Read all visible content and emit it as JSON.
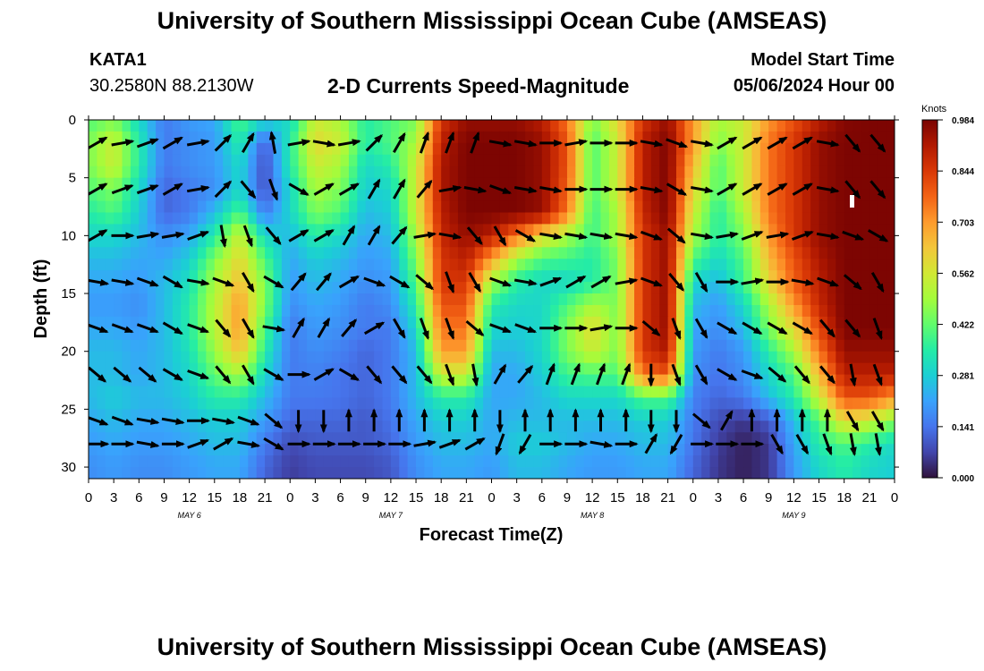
{
  "header": {
    "title": "University of Southern Mississippi Ocean Cube (AMSEAS)",
    "station_id": "KATA1",
    "station_coords": "30.2580N  88.2130W",
    "subtitle": "2-D Currents Speed-Magnitude",
    "model_label": "Model Start Time",
    "model_time": "05/06/2024 Hour 00"
  },
  "footer": {
    "title": "University of Southern Mississippi Ocean Cube (AMSEAS)"
  },
  "chart_data": {
    "type": "heatmap",
    "title": "2-D Currents Speed-Magnitude",
    "xlabel": "Forecast Time(Z)",
    "ylabel": "Depth (ft)",
    "xlim": [
      0,
      96
    ],
    "ylim": [
      0,
      31
    ],
    "x_tick_labels": [
      "0",
      "3",
      "6",
      "9",
      "12",
      "15",
      "18",
      "21",
      "0",
      "3",
      "6",
      "9",
      "12",
      "15",
      "18",
      "21",
      "0",
      "3",
      "6",
      "9",
      "12",
      "15",
      "18",
      "21",
      "0",
      "3",
      "6",
      "9",
      "12",
      "15",
      "18",
      "21",
      "0"
    ],
    "y_ticks": [
      0,
      5,
      10,
      15,
      20,
      25,
      30
    ],
    "y_tick_labels": [
      "0",
      "5",
      "10",
      "15",
      "20",
      "25",
      "30"
    ],
    "day_labels": [
      {
        "label": "MAY 6",
        "hour": 12
      },
      {
        "label": "MAY 7",
        "hour": 36
      },
      {
        "label": "MAY 8",
        "hour": 60
      },
      {
        "label": "MAY 9",
        "hour": 84
      }
    ],
    "colorbar": {
      "label": "Knots",
      "min": 0.0,
      "max": 0.984,
      "ticks": [
        "0.984",
        "0.844",
        "0.703",
        "0.562",
        "0.422",
        "0.281",
        "0.141",
        "0.000"
      ]
    },
    "colors": {
      "c0": "#30123b",
      "c1": "#4145ab",
      "c2": "#4675ed",
      "c3": "#39a2fc",
      "c4": "#1bcfd4",
      "c5": "#24eca6",
      "c6": "#61fc6c",
      "c7": "#a4fc3b",
      "c8": "#d1e834",
      "c9": "#f3c63a",
      "c10": "#fe9b2d",
      "c11": "#f36315",
      "c12": "#d93806",
      "c13": "#b11901",
      "c14": "#7a0402"
    },
    "depth_rows": [
      0,
      2,
      4,
      6,
      8,
      10,
      12,
      14,
      16,
      18,
      20,
      22,
      24,
      26,
      28,
      30,
      31
    ],
    "hour_columns": [
      0,
      3,
      6,
      9,
      12,
      15,
      18,
      21,
      24,
      27,
      30,
      33,
      36,
      39,
      42,
      45,
      48,
      51,
      54,
      57,
      60,
      63,
      66,
      69,
      72,
      75,
      78,
      81,
      84,
      87,
      90,
      93,
      96
    ],
    "speed_grid": [
      [
        0.4,
        0.45,
        0.3,
        0.15,
        0.2,
        0.22,
        0.4,
        0.3,
        0.3,
        0.55,
        0.5,
        0.35,
        0.4,
        0.45,
        0.85,
        0.95,
        0.95,
        0.95,
        0.9,
        0.75,
        0.45,
        0.6,
        0.85,
        0.95,
        0.7,
        0.5,
        0.55,
        0.7,
        0.8,
        0.9,
        0.97,
        0.98,
        0.98
      ],
      [
        0.45,
        0.55,
        0.35,
        0.15,
        0.18,
        0.2,
        0.35,
        0.1,
        0.35,
        0.6,
        0.55,
        0.35,
        0.4,
        0.5,
        0.9,
        0.98,
        0.98,
        0.98,
        0.95,
        0.8,
        0.4,
        0.55,
        0.9,
        0.98,
        0.7,
        0.45,
        0.55,
        0.75,
        0.85,
        0.95,
        0.98,
        0.98,
        0.98
      ],
      [
        0.45,
        0.55,
        0.35,
        0.15,
        0.18,
        0.2,
        0.3,
        0.08,
        0.35,
        0.55,
        0.5,
        0.3,
        0.35,
        0.55,
        0.92,
        0.98,
        0.98,
        0.98,
        0.95,
        0.8,
        0.4,
        0.55,
        0.9,
        0.98,
        0.65,
        0.4,
        0.55,
        0.75,
        0.85,
        0.95,
        0.98,
        0.98,
        0.98
      ],
      [
        0.4,
        0.45,
        0.3,
        0.12,
        0.15,
        0.18,
        0.3,
        0.08,
        0.3,
        0.5,
        0.45,
        0.28,
        0.3,
        0.55,
        0.92,
        0.98,
        0.98,
        0.98,
        0.95,
        0.78,
        0.4,
        0.55,
        0.9,
        0.98,
        0.6,
        0.4,
        0.55,
        0.75,
        0.85,
        0.95,
        0.98,
        0.98,
        0.98
      ],
      [
        0.35,
        0.4,
        0.28,
        0.12,
        0.15,
        0.25,
        0.4,
        0.15,
        0.3,
        0.45,
        0.4,
        0.25,
        0.28,
        0.55,
        0.9,
        0.98,
        0.98,
        0.98,
        0.95,
        0.75,
        0.38,
        0.5,
        0.88,
        0.98,
        0.55,
        0.35,
        0.5,
        0.75,
        0.85,
        0.95,
        0.98,
        0.98,
        0.98
      ],
      [
        0.3,
        0.3,
        0.25,
        0.18,
        0.22,
        0.35,
        0.55,
        0.3,
        0.25,
        0.35,
        0.3,
        0.22,
        0.25,
        0.5,
        0.88,
        0.95,
        0.9,
        0.75,
        0.6,
        0.5,
        0.38,
        0.5,
        0.85,
        0.95,
        0.5,
        0.35,
        0.45,
        0.7,
        0.85,
        0.95,
        0.98,
        0.98,
        0.98
      ],
      [
        0.25,
        0.25,
        0.22,
        0.22,
        0.28,
        0.45,
        0.6,
        0.4,
        0.22,
        0.28,
        0.25,
        0.2,
        0.22,
        0.45,
        0.85,
        0.9,
        0.7,
        0.5,
        0.4,
        0.38,
        0.35,
        0.45,
        0.85,
        0.95,
        0.4,
        0.3,
        0.4,
        0.65,
        0.8,
        0.92,
        0.98,
        0.98,
        0.98
      ],
      [
        0.22,
        0.22,
        0.2,
        0.25,
        0.32,
        0.5,
        0.65,
        0.45,
        0.2,
        0.25,
        0.22,
        0.18,
        0.2,
        0.4,
        0.85,
        0.85,
        0.5,
        0.35,
        0.3,
        0.3,
        0.35,
        0.45,
        0.85,
        0.95,
        0.3,
        0.25,
        0.38,
        0.6,
        0.78,
        0.9,
        0.98,
        0.98,
        0.98
      ],
      [
        0.2,
        0.2,
        0.18,
        0.25,
        0.35,
        0.52,
        0.7,
        0.45,
        0.18,
        0.22,
        0.2,
        0.15,
        0.18,
        0.35,
        0.8,
        0.8,
        0.35,
        0.3,
        0.3,
        0.4,
        0.5,
        0.45,
        0.85,
        0.95,
        0.25,
        0.2,
        0.3,
        0.5,
        0.7,
        0.88,
        0.98,
        0.98,
        0.98
      ],
      [
        0.22,
        0.22,
        0.2,
        0.25,
        0.35,
        0.52,
        0.7,
        0.4,
        0.15,
        0.2,
        0.18,
        0.15,
        0.15,
        0.3,
        0.75,
        0.75,
        0.3,
        0.28,
        0.3,
        0.45,
        0.6,
        0.45,
        0.85,
        0.95,
        0.22,
        0.18,
        0.25,
        0.45,
        0.6,
        0.82,
        0.98,
        0.98,
        0.98
      ],
      [
        0.25,
        0.25,
        0.22,
        0.25,
        0.32,
        0.48,
        0.65,
        0.35,
        0.15,
        0.18,
        0.16,
        0.12,
        0.15,
        0.25,
        0.7,
        0.7,
        0.25,
        0.25,
        0.3,
        0.45,
        0.55,
        0.45,
        0.85,
        0.92,
        0.2,
        0.15,
        0.2,
        0.35,
        0.5,
        0.75,
        0.95,
        0.95,
        0.95
      ],
      [
        0.25,
        0.25,
        0.22,
        0.25,
        0.3,
        0.42,
        0.5,
        0.3,
        0.15,
        0.16,
        0.14,
        0.12,
        0.15,
        0.25,
        0.55,
        0.55,
        0.22,
        0.22,
        0.28,
        0.38,
        0.4,
        0.4,
        0.75,
        0.8,
        0.18,
        0.14,
        0.18,
        0.3,
        0.4,
        0.65,
        0.9,
        0.9,
        0.9
      ],
      [
        0.25,
        0.28,
        0.25,
        0.25,
        0.28,
        0.35,
        0.35,
        0.25,
        0.15,
        0.15,
        0.14,
        0.12,
        0.15,
        0.25,
        0.35,
        0.35,
        0.22,
        0.22,
        0.25,
        0.3,
        0.3,
        0.3,
        0.4,
        0.4,
        0.16,
        0.12,
        0.15,
        0.25,
        0.35,
        0.55,
        0.8,
        0.8,
        0.7
      ],
      [
        0.22,
        0.25,
        0.22,
        0.22,
        0.25,
        0.28,
        0.28,
        0.2,
        0.12,
        0.12,
        0.12,
        0.1,
        0.14,
        0.22,
        0.28,
        0.28,
        0.22,
        0.25,
        0.25,
        0.25,
        0.25,
        0.25,
        0.28,
        0.28,
        0.15,
        0.08,
        0.05,
        0.1,
        0.25,
        0.4,
        0.6,
        0.55,
        0.45
      ],
      [
        0.2,
        0.22,
        0.2,
        0.2,
        0.22,
        0.25,
        0.25,
        0.15,
        0.08,
        0.1,
        0.1,
        0.1,
        0.12,
        0.2,
        0.25,
        0.25,
        0.22,
        0.28,
        0.28,
        0.25,
        0.22,
        0.22,
        0.25,
        0.25,
        0.14,
        0.06,
        0.02,
        0.05,
        0.22,
        0.35,
        0.4,
        0.35,
        0.3
      ],
      [
        0.18,
        0.2,
        0.18,
        0.18,
        0.2,
        0.22,
        0.22,
        0.12,
        0.06,
        0.08,
        0.08,
        0.08,
        0.1,
        0.18,
        0.22,
        0.22,
        0.2,
        0.25,
        0.25,
        0.22,
        0.2,
        0.2,
        0.22,
        0.22,
        0.12,
        0.05,
        0.02,
        0.05,
        0.2,
        0.3,
        0.35,
        0.3,
        0.28
      ],
      [
        0.18,
        0.2,
        0.18,
        0.18,
        0.2,
        0.22,
        0.22,
        0.12,
        0.06,
        0.08,
        0.08,
        0.08,
        0.1,
        0.18,
        0.22,
        0.22,
        0.2,
        0.25,
        0.25,
        0.22,
        0.2,
        0.2,
        0.22,
        0.22,
        0.12,
        0.05,
        0.02,
        0.05,
        0.2,
        0.3,
        0.35,
        0.3,
        0.28
      ]
    ],
    "arrow_depths": [
      2,
      6,
      10,
      14,
      18,
      22,
      26,
      28
    ],
    "arrow_hours": [
      1,
      4,
      7,
      10,
      13,
      16,
      19,
      22,
      25,
      28,
      31,
      34,
      37,
      40,
      43,
      46,
      49,
      52,
      55,
      58,
      61,
      64,
      67,
      70,
      73,
      76,
      79,
      82,
      85,
      88,
      91,
      94
    ],
    "arrow_directions_deg": [
      [
        60,
        80,
        70,
        60,
        80,
        45,
        30,
        350,
        80,
        100,
        80,
        45,
        30,
        20,
        20,
        20,
        100,
        100,
        90,
        80,
        90,
        90,
        100,
        110,
        100,
        60,
        60,
        60,
        60,
        100,
        140,
        140
      ],
      [
        60,
        70,
        70,
        60,
        80,
        45,
        140,
        160,
        120,
        60,
        60,
        30,
        30,
        40,
        80,
        100,
        110,
        100,
        100,
        90,
        90,
        90,
        100,
        120,
        100,
        60,
        60,
        60,
        60,
        100,
        140,
        140
      ],
      [
        60,
        90,
        80,
        80,
        70,
        170,
        160,
        140,
        60,
        60,
        30,
        30,
        40,
        80,
        100,
        140,
        150,
        120,
        100,
        100,
        100,
        100,
        110,
        130,
        100,
        80,
        70,
        80,
        70,
        100,
        110,
        120
      ],
      [
        100,
        100,
        110,
        120,
        100,
        110,
        150,
        120,
        40,
        40,
        60,
        110,
        120,
        130,
        160,
        150,
        110,
        100,
        70,
        60,
        60,
        80,
        110,
        140,
        150,
        90,
        80,
        90,
        100,
        110,
        130,
        150
      ],
      [
        110,
        110,
        110,
        120,
        110,
        140,
        150,
        100,
        30,
        30,
        40,
        60,
        150,
        160,
        160,
        130,
        110,
        110,
        90,
        90,
        80,
        90,
        130,
        160,
        150,
        120,
        120,
        120,
        120,
        140,
        140,
        160
      ],
      [
        130,
        130,
        130,
        120,
        110,
        140,
        150,
        120,
        90,
        60,
        120,
        140,
        140,
        140,
        160,
        170,
        30,
        40,
        20,
        20,
        20,
        20,
        180,
        160,
        150,
        120,
        110,
        130,
        140,
        140,
        170,
        160
      ],
      [
        110,
        110,
        100,
        100,
        90,
        100,
        110,
        130,
        180,
        180,
        0,
        0,
        0,
        0,
        0,
        0,
        180,
        0,
        0,
        0,
        0,
        0,
        180,
        180,
        130,
        30,
        0,
        0,
        0,
        0,
        150,
        150
      ],
      [
        90,
        90,
        100,
        90,
        70,
        60,
        100,
        120,
        90,
        90,
        90,
        90,
        90,
        80,
        70,
        60,
        200,
        210,
        90,
        90,
        100,
        90,
        30,
        210,
        90,
        90,
        90,
        150,
        150,
        160,
        170,
        170
      ]
    ]
  }
}
